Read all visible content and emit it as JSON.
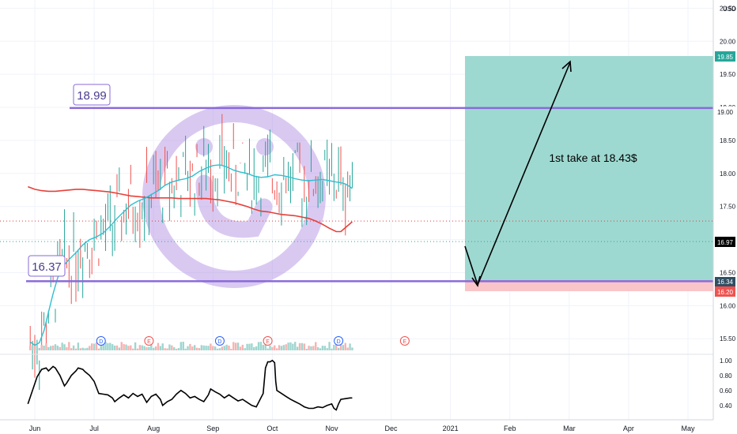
{
  "chart_data": {
    "type": "line",
    "currency": "USD",
    "x_ticks": [
      "Jun",
      "Jul",
      "Aug",
      "Sep",
      "Oct",
      "Nov",
      "Dec",
      "2021",
      "Feb",
      "Mar",
      "Apr",
      "May"
    ],
    "price_axis": {
      "min": 15.3,
      "max": 20.6,
      "ticks": [
        "15.50",
        "16.00",
        "16.50",
        "17.00",
        "17.50",
        "18.00",
        "18.50",
        "19.00",
        "19.50",
        "20.00",
        "20.50"
      ]
    },
    "oscillator_axis": {
      "min": 0.25,
      "max": 1.05,
      "ticks": [
        "0.40",
        "0.60",
        "0.80",
        "1.00"
      ]
    },
    "price_labels": {
      "target": "19.85",
      "resistance": "19.00",
      "current": "16.97",
      "support": "16.34",
      "stop": "16.20"
    },
    "levels": {
      "resistance": {
        "value": 18.99,
        "label": "18.99"
      },
      "support": {
        "value": 16.37,
        "label": "16.37"
      },
      "ma200_dotted": 17.28,
      "current_dotted": 16.97
    },
    "position": {
      "entry": 16.34,
      "target": 19.85,
      "stop": 16.2
    },
    "annotation": "1st take at 18.43$",
    "event_markers": [
      {
        "x": 29.0,
        "text": "D"
      },
      {
        "x": 50.0,
        "text": "E"
      },
      {
        "x": 81.0,
        "text": "D"
      },
      {
        "x": 102.0,
        "text": "E"
      },
      {
        "x": 133.0,
        "text": "D"
      },
      {
        "x": 162.0,
        "text": "E"
      }
    ],
    "sma50": [
      [
        -2.0,
        15.45
      ],
      [
        0.0,
        15.4
      ],
      [
        2.0,
        15.44
      ],
      [
        4.0,
        15.62
      ],
      [
        6.0,
        15.9
      ],
      [
        8.0,
        16.18
      ],
      [
        10.0,
        16.42
      ],
      [
        12.0,
        16.58
      ],
      [
        15.0,
        16.7
      ],
      [
        18.0,
        16.8
      ],
      [
        21.0,
        16.92
      ],
      [
        24.0,
        17.0
      ],
      [
        27.0,
        17.04
      ],
      [
        30.0,
        17.1
      ],
      [
        33.0,
        17.2
      ],
      [
        36.0,
        17.32
      ],
      [
        39.0,
        17.42
      ],
      [
        42.0,
        17.52
      ],
      [
        45.0,
        17.58
      ],
      [
        48.0,
        17.62
      ],
      [
        51.0,
        17.68
      ],
      [
        54.0,
        17.74
      ],
      [
        57.0,
        17.82
      ],
      [
        60.0,
        17.87
      ],
      [
        63.0,
        17.9
      ],
      [
        66.0,
        17.92
      ],
      [
        69.0,
        17.96
      ],
      [
        72.0,
        18.03
      ],
      [
        75.0,
        18.08
      ],
      [
        78.0,
        18.12
      ],
      [
        81.0,
        18.13
      ],
      [
        84.0,
        18.1
      ],
      [
        87.0,
        18.05
      ],
      [
        90.0,
        18.02
      ],
      [
        93.0,
        18.0
      ],
      [
        96.0,
        17.96
      ],
      [
        99.0,
        17.94
      ],
      [
        102.0,
        17.95
      ],
      [
        105.0,
        17.98
      ],
      [
        108.0,
        17.97
      ],
      [
        111.0,
        17.95
      ],
      [
        114.0,
        17.92
      ],
      [
        117.0,
        17.9
      ],
      [
        120.0,
        17.89
      ],
      [
        123.0,
        17.9
      ],
      [
        126.0,
        17.91
      ],
      [
        129.0,
        17.89
      ],
      [
        132.0,
        17.87
      ],
      [
        134.0,
        17.86
      ],
      [
        136.0,
        17.84
      ],
      [
        138.0,
        17.8
      ],
      [
        139.0,
        17.77
      ]
    ],
    "sma200": [
      [
        -3.0,
        17.8
      ],
      [
        0.0,
        17.76
      ],
      [
        3.0,
        17.74
      ],
      [
        6.0,
        17.73
      ],
      [
        9.0,
        17.73
      ],
      [
        12.0,
        17.74
      ],
      [
        15.0,
        17.75
      ],
      [
        18.0,
        17.76
      ],
      [
        21.0,
        17.76
      ],
      [
        24.0,
        17.75
      ],
      [
        27.0,
        17.74
      ],
      [
        30.0,
        17.73
      ],
      [
        33.0,
        17.72
      ],
      [
        36.0,
        17.7
      ],
      [
        39.0,
        17.68
      ],
      [
        42.0,
        17.66
      ],
      [
        45.0,
        17.65
      ],
      [
        48.0,
        17.64
      ],
      [
        51.0,
        17.63
      ],
      [
        54.0,
        17.63
      ],
      [
        57.0,
        17.63
      ],
      [
        60.0,
        17.63
      ],
      [
        63.0,
        17.62
      ],
      [
        66.0,
        17.62
      ],
      [
        69.0,
        17.62
      ],
      [
        72.0,
        17.62
      ],
      [
        75.0,
        17.62
      ],
      [
        78.0,
        17.61
      ],
      [
        81.0,
        17.6
      ],
      [
        84.0,
        17.58
      ],
      [
        87.0,
        17.56
      ],
      [
        90.0,
        17.53
      ],
      [
        93.0,
        17.5
      ],
      [
        96.0,
        17.46
      ],
      [
        99.0,
        17.43
      ],
      [
        102.0,
        17.42
      ],
      [
        105.0,
        17.4
      ],
      [
        108.0,
        17.38
      ],
      [
        111.0,
        17.37
      ],
      [
        114.0,
        17.36
      ],
      [
        117.0,
        17.34
      ],
      [
        120.0,
        17.32
      ],
      [
        123.0,
        17.28
      ],
      [
        126.0,
        17.23
      ],
      [
        129.0,
        17.17
      ],
      [
        132.0,
        17.12
      ],
      [
        134.0,
        17.12
      ],
      [
        136.0,
        17.18
      ],
      [
        138.0,
        17.24
      ],
      [
        139.0,
        17.27
      ]
    ],
    "oscillator": [
      [
        -3.0,
        0.42
      ],
      [
        -1.0,
        0.6
      ],
      [
        1.0,
        0.78
      ],
      [
        3.0,
        0.88
      ],
      [
        5.0,
        0.9
      ],
      [
        6.0,
        0.86
      ],
      [
        8.0,
        0.92
      ],
      [
        9.0,
        0.9
      ],
      [
        11.0,
        0.8
      ],
      [
        13.0,
        0.66
      ],
      [
        14.0,
        0.7
      ],
      [
        16.0,
        0.8
      ],
      [
        18.0,
        0.86
      ],
      [
        19.0,
        0.9
      ],
      [
        21.0,
        0.88
      ],
      [
        22.0,
        0.85
      ],
      [
        24.0,
        0.8
      ],
      [
        26.0,
        0.72
      ],
      [
        28.0,
        0.56
      ],
      [
        30.0,
        0.55
      ],
      [
        32.0,
        0.54
      ],
      [
        34.0,
        0.5
      ],
      [
        35.0,
        0.45
      ],
      [
        37.0,
        0.5
      ],
      [
        39.0,
        0.54
      ],
      [
        41.0,
        0.5
      ],
      [
        43.0,
        0.56
      ],
      [
        45.0,
        0.52
      ],
      [
        47.0,
        0.55
      ],
      [
        49.0,
        0.44
      ],
      [
        51.0,
        0.52
      ],
      [
        53.0,
        0.55
      ],
      [
        55.0,
        0.48
      ],
      [
        56.0,
        0.4
      ],
      [
        58.0,
        0.45
      ],
      [
        60.0,
        0.48
      ],
      [
        62.0,
        0.55
      ],
      [
        64.0,
        0.6
      ],
      [
        66.0,
        0.56
      ],
      [
        68.0,
        0.5
      ],
      [
        70.0,
        0.52
      ],
      [
        72.0,
        0.48
      ],
      [
        74.0,
        0.45
      ],
      [
        76.0,
        0.54
      ],
      [
        77.0,
        0.62
      ],
      [
        79.0,
        0.58
      ],
      [
        81.0,
        0.55
      ],
      [
        83.0,
        0.5
      ],
      [
        85.0,
        0.54
      ],
      [
        87.0,
        0.5
      ],
      [
        89.0,
        0.46
      ],
      [
        91.0,
        0.48
      ],
      [
        93.0,
        0.44
      ],
      [
        95.0,
        0.4
      ],
      [
        97.0,
        0.38
      ],
      [
        99.0,
        0.5
      ],
      [
        100.0,
        0.56
      ],
      [
        101.0,
        0.9
      ],
      [
        102.0,
        0.98
      ],
      [
        103.0,
        0.98
      ],
      [
        104.0,
        1.0
      ],
      [
        105.0,
        0.97
      ],
      [
        105.5,
        0.72
      ],
      [
        106.0,
        0.6
      ],
      [
        108.0,
        0.56
      ],
      [
        110.0,
        0.52
      ],
      [
        112.0,
        0.48
      ],
      [
        114.0,
        0.45
      ],
      [
        116.0,
        0.42
      ],
      [
        118.0,
        0.38
      ],
      [
        120.0,
        0.36
      ],
      [
        122.0,
        0.36
      ],
      [
        124.0,
        0.38
      ],
      [
        126.0,
        0.37
      ],
      [
        128.0,
        0.4
      ],
      [
        130.0,
        0.42
      ],
      [
        131.0,
        0.36
      ],
      [
        132.0,
        0.34
      ],
      [
        133.0,
        0.42
      ],
      [
        134.0,
        0.48
      ],
      [
        136.0,
        0.49
      ],
      [
        138.0,
        0.5
      ],
      [
        139.0,
        0.5
      ]
    ]
  }
}
